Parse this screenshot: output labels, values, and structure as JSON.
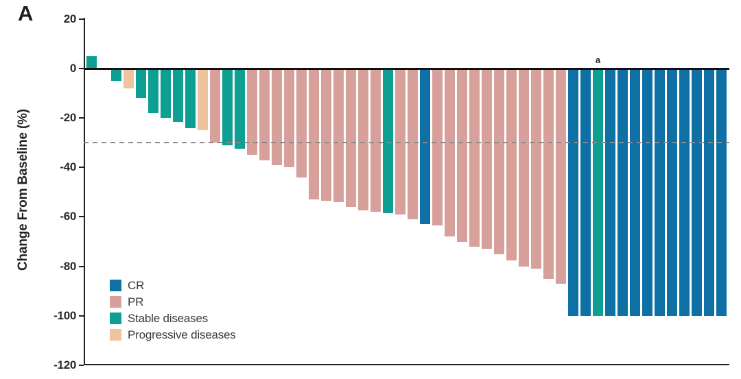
{
  "panel": {
    "label": "A"
  },
  "annotation": {
    "text": "a"
  },
  "colors": {
    "cr": "#0f70a6",
    "pr": "#d8a09b",
    "stable": "#0d9f92",
    "progressive": "#eec49e",
    "axis": "#231f20",
    "reference_line": "#8a8a8a"
  },
  "chart_data": {
    "type": "bar",
    "variant": "waterfall",
    "title": "",
    "xlabel": "",
    "ylabel": "Change From Baseline (%)",
    "ylim": [
      -120,
      20
    ],
    "yticks": [
      20,
      0,
      -20,
      -40,
      -60,
      -80,
      -100,
      -120
    ],
    "grid": false,
    "reference_line_y": -30,
    "legend_position": "lower-left",
    "legend": [
      {
        "key": "cr",
        "label": "CR"
      },
      {
        "key": "pr",
        "label": "PR"
      },
      {
        "key": "stable",
        "label": "Stable diseases"
      },
      {
        "key": "progressive",
        "label": "Progressive diseases"
      }
    ],
    "annotation_bar_index": 41,
    "bars": [
      {
        "value": 5,
        "response": "stable"
      },
      {
        "value": 0,
        "response": "stable"
      },
      {
        "value": -5,
        "response": "stable"
      },
      {
        "value": -8,
        "response": "progressive"
      },
      {
        "value": -12,
        "response": "stable"
      },
      {
        "value": -18,
        "response": "stable"
      },
      {
        "value": -20,
        "response": "stable"
      },
      {
        "value": -21.5,
        "response": "stable"
      },
      {
        "value": -24,
        "response": "stable"
      },
      {
        "value": -25,
        "response": "progressive"
      },
      {
        "value": -30,
        "response": "pr"
      },
      {
        "value": -31,
        "response": "stable"
      },
      {
        "value": -32.5,
        "response": "stable"
      },
      {
        "value": -35,
        "response": "pr"
      },
      {
        "value": -37,
        "response": "pr"
      },
      {
        "value": -39,
        "response": "pr"
      },
      {
        "value": -40,
        "response": "pr"
      },
      {
        "value": -44,
        "response": "pr"
      },
      {
        "value": -53,
        "response": "pr"
      },
      {
        "value": -53.5,
        "response": "pr"
      },
      {
        "value": -54,
        "response": "pr"
      },
      {
        "value": -56,
        "response": "pr"
      },
      {
        "value": -57.5,
        "response": "pr"
      },
      {
        "value": -58,
        "response": "pr"
      },
      {
        "value": -58.5,
        "response": "stable"
      },
      {
        "value": -59,
        "response": "pr"
      },
      {
        "value": -61,
        "response": "pr"
      },
      {
        "value": -63,
        "response": "cr"
      },
      {
        "value": -63.5,
        "response": "pr"
      },
      {
        "value": -68,
        "response": "pr"
      },
      {
        "value": -70,
        "response": "pr"
      },
      {
        "value": -72,
        "response": "pr"
      },
      {
        "value": -73,
        "response": "pr"
      },
      {
        "value": -75,
        "response": "pr"
      },
      {
        "value": -77.5,
        "response": "pr"
      },
      {
        "value": -80,
        "response": "pr"
      },
      {
        "value": -81,
        "response": "pr"
      },
      {
        "value": -85,
        "response": "pr"
      },
      {
        "value": -87,
        "response": "pr"
      },
      {
        "value": -100,
        "response": "cr"
      },
      {
        "value": -100,
        "response": "cr"
      },
      {
        "value": -100,
        "response": "stable"
      },
      {
        "value": -100,
        "response": "cr"
      },
      {
        "value": -100,
        "response": "cr"
      },
      {
        "value": -100,
        "response": "cr"
      },
      {
        "value": -100,
        "response": "cr"
      },
      {
        "value": -100,
        "response": "cr"
      },
      {
        "value": -100,
        "response": "cr"
      },
      {
        "value": -100,
        "response": "cr"
      },
      {
        "value": -100,
        "response": "cr"
      },
      {
        "value": -100,
        "response": "cr"
      },
      {
        "value": -100,
        "response": "cr"
      }
    ]
  }
}
